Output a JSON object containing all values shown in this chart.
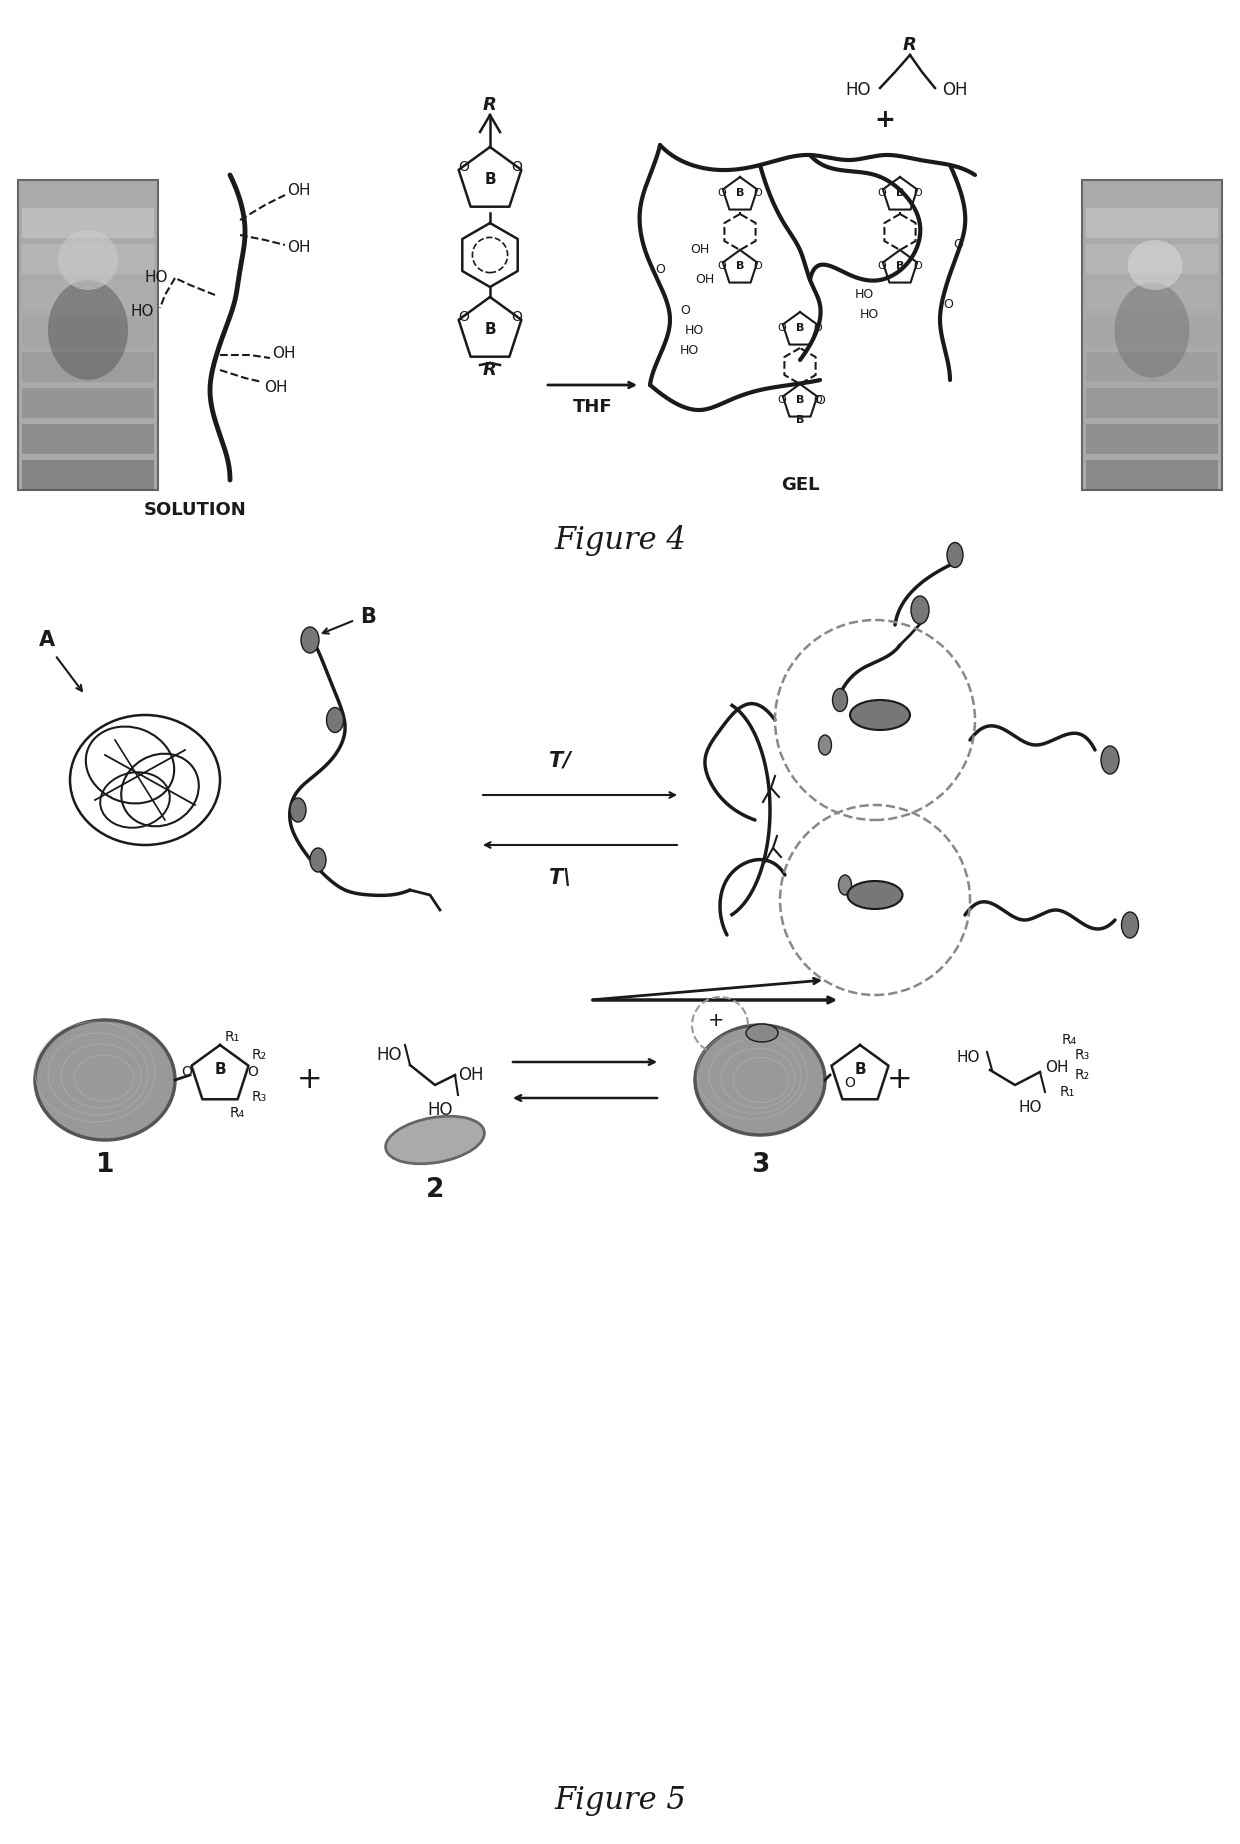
{
  "fig4_title": "Figure 4",
  "fig5_title": "Figure 5",
  "solution_label": "SOLUTION",
  "gel_label": "GEL",
  "thf_label": "THF",
  "label_A": "A",
  "label_B": "B",
  "label_1": "1",
  "label_2": "2",
  "label_3": "3",
  "bg_color": "#ffffff",
  "line_color": "#1a1a1a",
  "dark_gray": "#555555",
  "med_gray": "#888888",
  "light_gray": "#bbbbbb",
  "photo_gray": "#999999"
}
